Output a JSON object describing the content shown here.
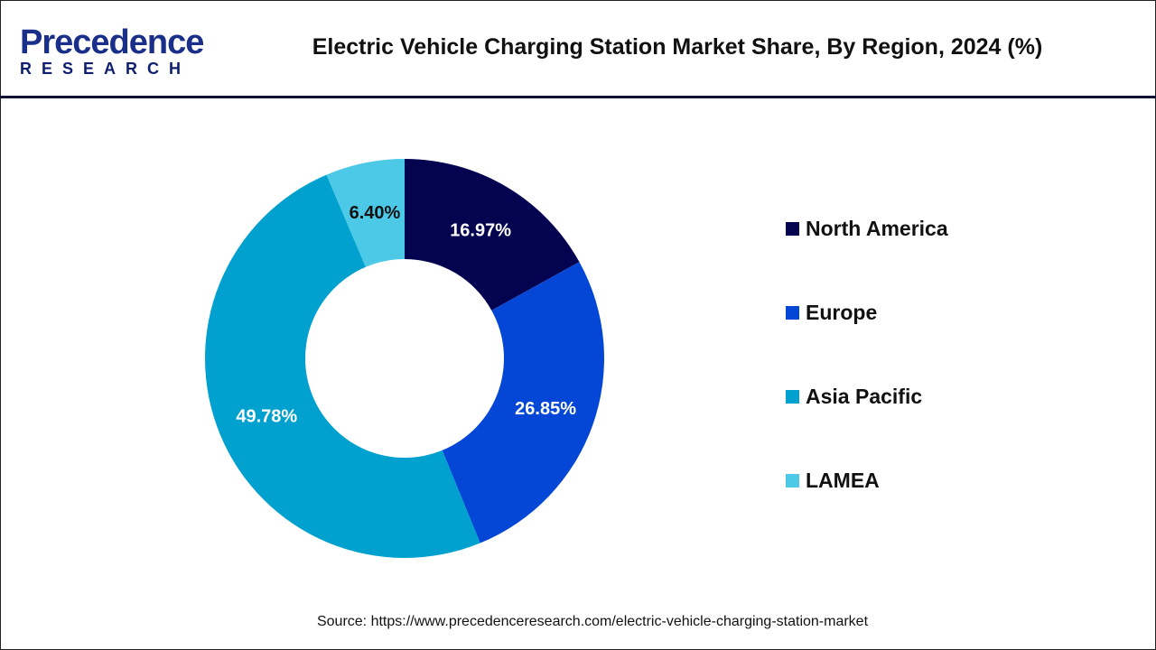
{
  "header": {
    "logo_text": "Precedence",
    "logo_subtext": "RESEARCH",
    "title": "Electric Vehicle Charging Station Market Share, By Region, 2024 (%)"
  },
  "chart_data": {
    "type": "pie",
    "variant": "donut",
    "title": "Electric Vehicle Charging Station Market Share, By Region, 2024 (%)",
    "categories": [
      "North America",
      "Europe",
      "Asia Pacific",
      "LAMEA"
    ],
    "values": [
      16.97,
      26.85,
      49.78,
      6.4
    ],
    "labels": [
      "16.97%",
      "26.85%",
      "49.78%",
      "6.40%"
    ],
    "colors": [
      "#03034f",
      "#0447d6",
      "#00a0cf",
      "#4cc9e6"
    ],
    "label_colors": [
      "#ffffff",
      "#ffffff",
      "#ffffff",
      "#111111"
    ],
    "start": "top",
    "direction": "clockwise",
    "legend_position": "right"
  },
  "source": "Source: https://www.precedenceresearch.com/electric-vehicle-charging-station-market"
}
